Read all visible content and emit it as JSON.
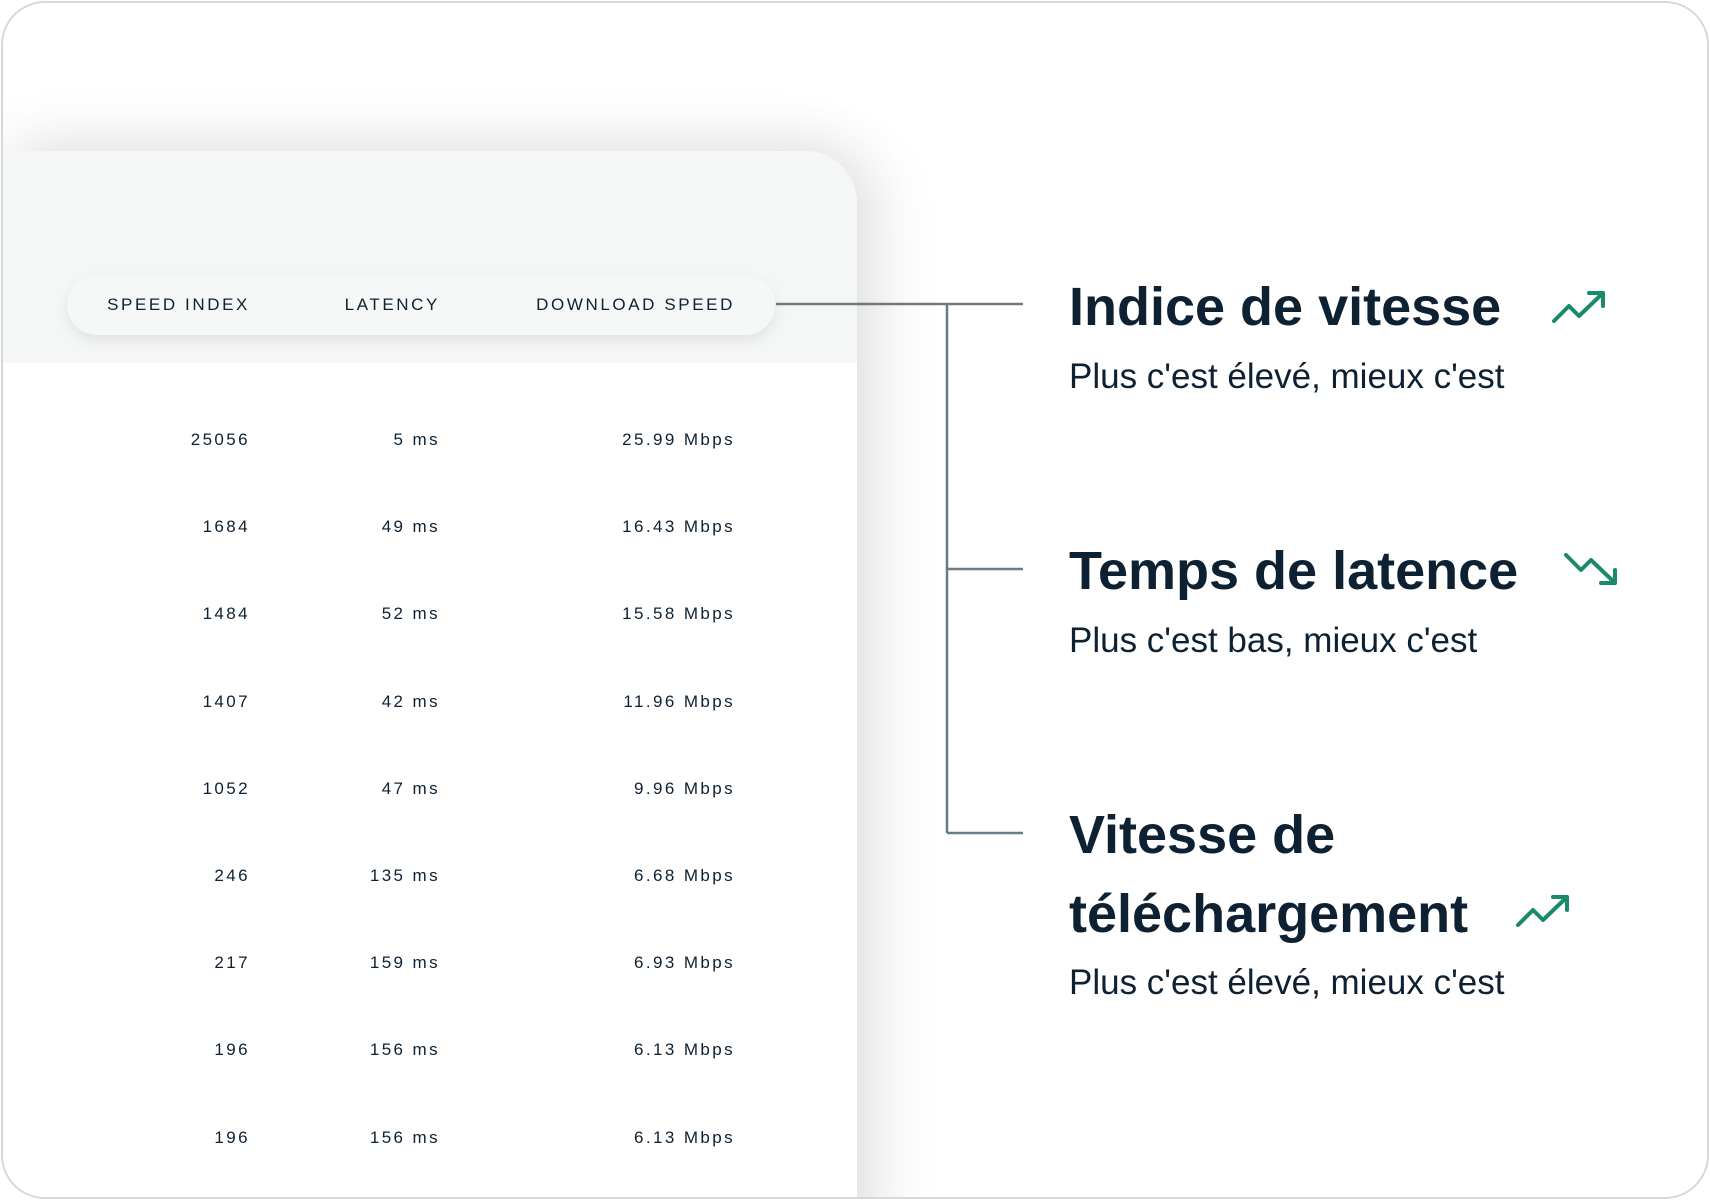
{
  "table": {
    "headers": [
      "SPEED INDEX",
      "LATENCY",
      "DOWNLOAD SPEED"
    ],
    "rows": [
      [
        "25056",
        "5 ms",
        "25.99 Mbps"
      ],
      [
        "1684",
        "49 ms",
        "16.43 Mbps"
      ],
      [
        "1484",
        "52 ms",
        "15.58 Mbps"
      ],
      [
        "1407",
        "42 ms",
        "11.96  Mbps"
      ],
      [
        "1052",
        "47 ms",
        "9.96 Mbps"
      ],
      [
        "246",
        "135 ms",
        "6.68 Mbps"
      ],
      [
        "217",
        "159 ms",
        "6.93 Mbps"
      ],
      [
        "196",
        "156 ms",
        "6.13 Mbps"
      ],
      [
        "196",
        "156 ms",
        "6.13 Mbps"
      ]
    ]
  },
  "legend": [
    {
      "title": "Indice de vitesse",
      "subtitle": "Plus c'est élevé, mieux c'est",
      "icon": "trend-up-icon"
    },
    {
      "title": "Temps de latence",
      "subtitle": "Plus c'est bas, mieux c'est",
      "icon": "trend-down-icon"
    },
    {
      "title_line1": "Vitesse de",
      "title_line2": "téléchargement",
      "subtitle": "Plus c'est élevé, mieux c'est",
      "icon": "trend-up-icon"
    }
  ],
  "colors": {
    "text": "#0d2133",
    "accent": "#1a8a6a",
    "connector": "#6b7b86"
  }
}
